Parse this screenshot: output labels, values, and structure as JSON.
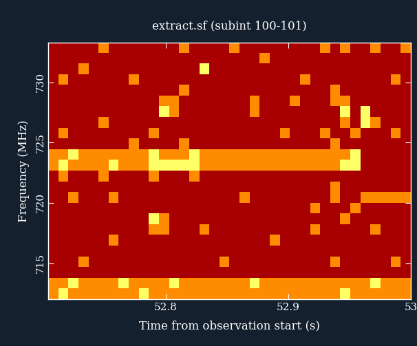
{
  "chart_data": {
    "type": "heatmap",
    "title": "extract.sf (subint 100-101)",
    "x_label": "Time from observation start (s)",
    "y_label": "Frequency (MHz)",
    "xlim": [
      52.704,
      53.0
    ],
    "xticks": [
      52.8,
      52.9,
      53
    ],
    "ylim": [
      712.0,
      733.3
    ],
    "yticks": [
      715,
      720,
      725,
      730
    ],
    "colors": [
      "#a80000",
      "#ff8c00",
      "#ffff66"
    ],
    "color_range": [
      0,
      2
    ],
    "cells": [
      [
        0,
        0,
        0,
        0,
        0,
        1,
        0,
        0,
        0,
        0,
        0,
        0,
        0,
        1,
        0,
        0,
        0,
        0,
        1,
        0,
        0,
        0,
        0,
        0,
        0,
        0,
        0,
        1,
        0,
        1,
        0,
        0,
        1,
        0,
        0,
        1
      ],
      [
        0,
        0,
        0,
        0,
        0,
        0,
        0,
        0,
        0,
        0,
        0,
        0,
        0,
        0,
        0,
        0,
        0,
        0,
        0,
        0,
        0,
        1,
        0,
        0,
        0,
        0,
        0,
        0,
        0,
        0,
        0,
        0,
        0,
        0,
        0,
        0
      ],
      [
        0,
        0,
        0,
        1,
        0,
        0,
        0,
        0,
        0,
        0,
        0,
        0,
        0,
        0,
        0,
        2,
        0,
        0,
        0,
        0,
        0,
        0,
        0,
        0,
        0,
        0,
        0,
        0,
        0,
        0,
        0,
        0,
        0,
        0,
        0,
        0
      ],
      [
        0,
        1,
        0,
        0,
        0,
        0,
        0,
        0,
        1,
        0,
        0,
        0,
        0,
        0,
        0,
        0,
        0,
        0,
        0,
        0,
        0,
        0,
        0,
        0,
        0,
        1,
        0,
        0,
        0,
        0,
        0,
        0,
        0,
        0,
        1,
        0
      ],
      [
        0,
        0,
        0,
        0,
        0,
        0,
        0,
        0,
        0,
        0,
        0,
        0,
        0,
        1,
        0,
        0,
        0,
        0,
        0,
        0,
        0,
        0,
        0,
        0,
        0,
        0,
        0,
        0,
        1,
        0,
        0,
        0,
        0,
        0,
        0,
        0
      ],
      [
        0,
        0,
        0,
        0,
        0,
        0,
        0,
        0,
        0,
        0,
        0,
        1,
        1,
        0,
        0,
        0,
        0,
        0,
        0,
        0,
        1,
        0,
        0,
        0,
        1,
        0,
        0,
        0,
        1,
        1,
        0,
        0,
        0,
        0,
        0,
        0
      ],
      [
        0,
        0,
        0,
        0,
        0,
        0,
        0,
        0,
        0,
        0,
        0,
        2,
        1,
        0,
        0,
        0,
        0,
        0,
        0,
        0,
        1,
        0,
        0,
        0,
        0,
        0,
        0,
        0,
        0,
        2,
        0,
        2,
        0,
        0,
        0,
        0
      ],
      [
        0,
        0,
        0,
        0,
        0,
        1,
        0,
        0,
        0,
        0,
        0,
        0,
        0,
        0,
        0,
        0,
        0,
        0,
        0,
        0,
        0,
        0,
        0,
        0,
        0,
        0,
        0,
        0,
        0,
        1,
        0,
        2,
        1,
        0,
        0,
        0
      ],
      [
        0,
        1,
        0,
        0,
        0,
        0,
        0,
        0,
        0,
        0,
        1,
        0,
        0,
        0,
        0,
        0,
        0,
        0,
        0,
        0,
        0,
        0,
        0,
        1,
        0,
        0,
        0,
        1,
        0,
        0,
        1,
        0,
        0,
        0,
        1,
        0
      ],
      [
        0,
        0,
        0,
        0,
        0,
        0,
        0,
        0,
        1,
        0,
        0,
        0,
        0,
        1,
        0,
        0,
        0,
        0,
        0,
        0,
        0,
        0,
        0,
        0,
        0,
        0,
        0,
        0,
        1,
        0,
        0,
        0,
        0,
        0,
        0,
        0
      ],
      [
        1,
        1,
        2,
        1,
        1,
        1,
        1,
        1,
        1,
        1,
        2,
        1,
        1,
        1,
        2,
        1,
        1,
        1,
        1,
        1,
        1,
        1,
        1,
        1,
        1,
        1,
        1,
        1,
        1,
        1,
        2,
        0,
        0,
        0,
        0,
        0
      ],
      [
        1,
        2,
        1,
        1,
        1,
        1,
        2,
        1,
        1,
        1,
        2,
        2,
        2,
        2,
        2,
        1,
        1,
        1,
        1,
        1,
        1,
        1,
        1,
        1,
        1,
        1,
        1,
        1,
        1,
        2,
        2,
        0,
        0,
        0,
        0,
        0
      ],
      [
        0,
        1,
        0,
        0,
        0,
        1,
        0,
        0,
        0,
        0,
        1,
        0,
        0,
        0,
        1,
        0,
        0,
        0,
        0,
        0,
        0,
        0,
        0,
        0,
        0,
        0,
        0,
        0,
        0,
        0,
        0,
        0,
        0,
        0,
        0,
        0
      ],
      [
        0,
        0,
        0,
        0,
        0,
        0,
        0,
        0,
        0,
        0,
        0,
        0,
        0,
        0,
        0,
        0,
        0,
        0,
        0,
        0,
        0,
        0,
        0,
        0,
        0,
        0,
        0,
        0,
        1,
        0,
        0,
        0,
        0,
        0,
        0,
        0
      ],
      [
        0,
        0,
        1,
        0,
        0,
        0,
        1,
        0,
        0,
        0,
        0,
        0,
        0,
        0,
        0,
        0,
        0,
        0,
        0,
        1,
        0,
        0,
        0,
        0,
        0,
        0,
        0,
        0,
        1,
        0,
        0,
        1,
        1,
        1,
        1,
        1
      ],
      [
        0,
        0,
        0,
        0,
        0,
        0,
        0,
        0,
        0,
        0,
        0,
        0,
        0,
        0,
        0,
        0,
        0,
        0,
        0,
        0,
        0,
        0,
        0,
        0,
        0,
        0,
        1,
        0,
        0,
        0,
        1,
        0,
        0,
        0,
        0,
        0
      ],
      [
        0,
        0,
        0,
        0,
        0,
        0,
        0,
        0,
        0,
        0,
        2,
        1,
        0,
        0,
        0,
        0,
        0,
        0,
        0,
        0,
        0,
        0,
        0,
        0,
        0,
        0,
        0,
        0,
        0,
        1,
        0,
        0,
        0,
        0,
        0,
        0
      ],
      [
        0,
        0,
        0,
        0,
        0,
        0,
        0,
        0,
        0,
        0,
        1,
        1,
        0,
        0,
        0,
        1,
        0,
        0,
        0,
        0,
        0,
        0,
        0,
        0,
        0,
        0,
        1,
        0,
        0,
        0,
        0,
        0,
        1,
        0,
        0,
        0
      ],
      [
        0,
        0,
        0,
        0,
        0,
        0,
        1,
        0,
        0,
        0,
        0,
        0,
        0,
        0,
        0,
        0,
        0,
        0,
        0,
        0,
        0,
        0,
        1,
        0,
        0,
        0,
        0,
        0,
        0,
        0,
        0,
        0,
        0,
        0,
        0,
        0
      ],
      [
        0,
        0,
        0,
        0,
        0,
        0,
        0,
        0,
        0,
        0,
        0,
        0,
        0,
        0,
        0,
        0,
        0,
        0,
        0,
        0,
        0,
        0,
        0,
        0,
        0,
        0,
        0,
        0,
        0,
        0,
        0,
        0,
        0,
        0,
        0,
        0
      ],
      [
        0,
        0,
        0,
        1,
        0,
        0,
        0,
        0,
        0,
        0,
        0,
        0,
        0,
        0,
        0,
        0,
        0,
        1,
        0,
        0,
        0,
        0,
        0,
        0,
        0,
        0,
        0,
        0,
        1,
        0,
        0,
        0,
        0,
        0,
        1,
        0
      ],
      [
        0,
        0,
        0,
        0,
        0,
        0,
        0,
        0,
        0,
        0,
        0,
        0,
        0,
        0,
        0,
        0,
        0,
        0,
        0,
        0,
        0,
        0,
        0,
        0,
        0,
        0,
        0,
        0,
        0,
        0,
        0,
        0,
        0,
        0,
        0,
        0
      ],
      [
        1,
        1,
        2,
        1,
        1,
        1,
        1,
        2,
        1,
        1,
        1,
        1,
        2,
        1,
        1,
        1,
        1,
        1,
        1,
        1,
        2,
        1,
        1,
        1,
        1,
        1,
        1,
        1,
        1,
        1,
        1,
        1,
        2,
        1,
        1,
        1
      ],
      [
        1,
        2,
        1,
        1,
        1,
        1,
        1,
        1,
        1,
        2,
        1,
        1,
        1,
        1,
        1,
        1,
        1,
        1,
        1,
        1,
        1,
        1,
        1,
        1,
        1,
        1,
        1,
        1,
        1,
        2,
        1,
        1,
        1,
        1,
        1,
        1
      ]
    ]
  }
}
